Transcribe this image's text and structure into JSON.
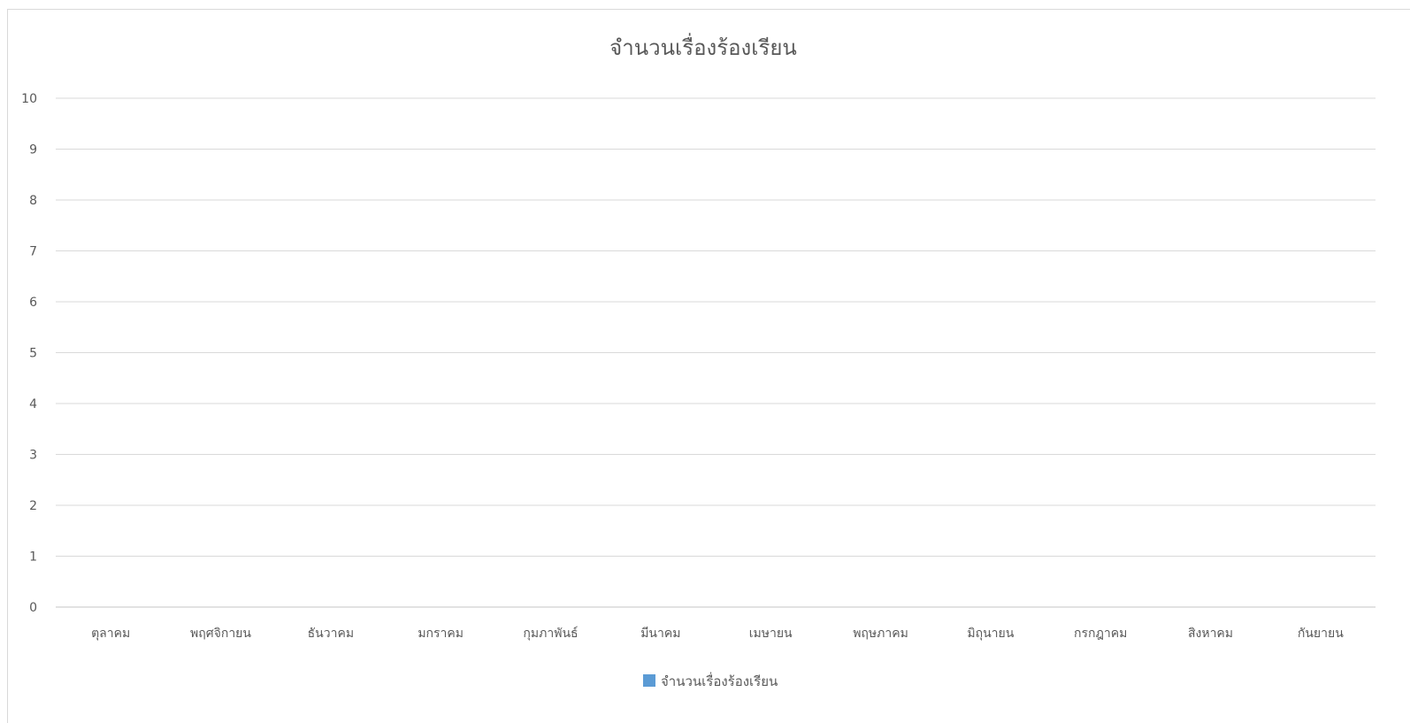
{
  "chart_data": {
    "type": "bar",
    "title": "จำนวนเรื่องร้องเรียน",
    "xlabel": "",
    "ylabel": "",
    "categories": [
      "ตุลาคม",
      "พฤศจิกายน",
      "ธันวาคม",
      "มกราคม",
      "กุมภาพันธ์",
      "มีนาคม",
      "เมษายน",
      "พฤษภาคม",
      "มิถุนายน",
      "กรกฎาคม",
      "สิงหาคม",
      "กันยายน"
    ],
    "series": [
      {
        "name": "จำนวนเรื่องร้องเรียน",
        "values": [
          0,
          0,
          0,
          0,
          0,
          0,
          0,
          0,
          0,
          0,
          0,
          0
        ]
      }
    ],
    "ylim": [
      0,
      10
    ],
    "yticks": [
      "0",
      "1",
      "2",
      "3",
      "4",
      "5",
      "6",
      "7",
      "8",
      "9",
      "10"
    ],
    "grid": true,
    "legend_position": "bottom",
    "colors": {
      "series": "#5b9bd5",
      "grid": "#d9d9d9",
      "text": "#595959"
    }
  }
}
